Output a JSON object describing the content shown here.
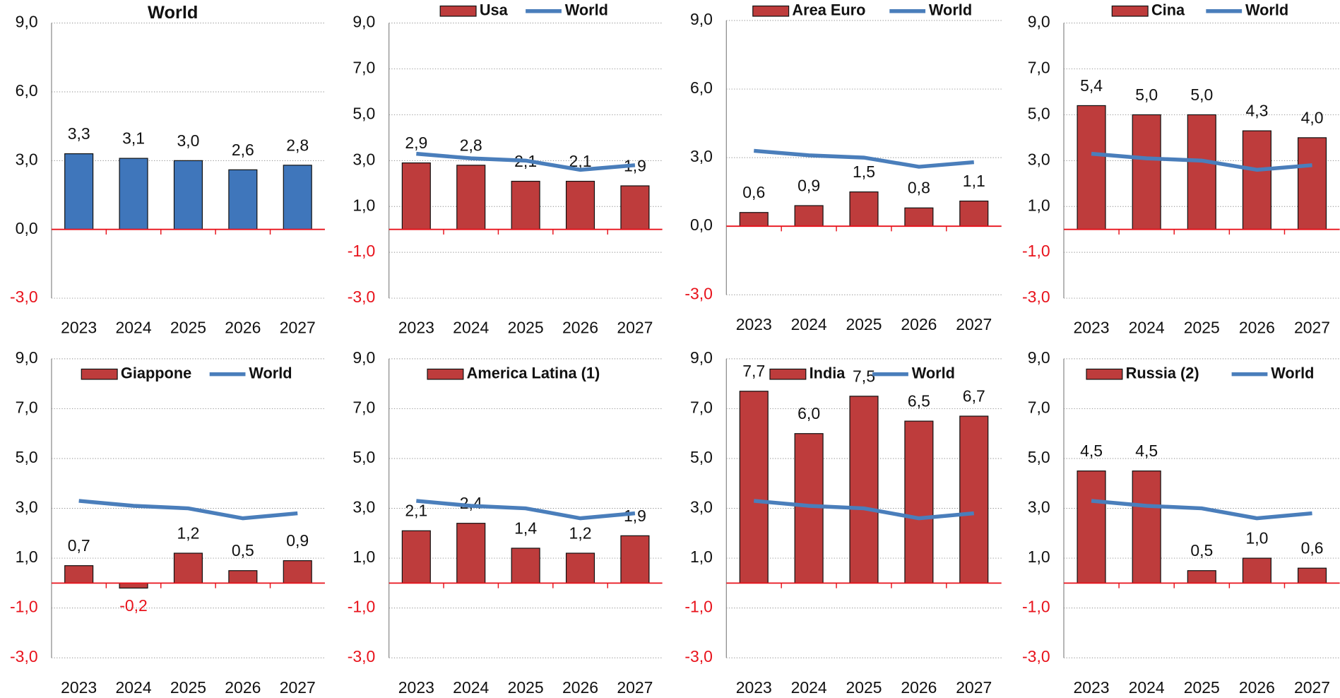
{
  "chart_data": [
    {
      "type": "bar",
      "title": "World",
      "categories": [
        "2023",
        "2024",
        "2025",
        "2026",
        "2027"
      ],
      "values": [
        3.3,
        3.1,
        3.0,
        2.6,
        2.8
      ],
      "value_labels": [
        "3,3",
        "3,1",
        "3,0",
        "2,6",
        "2,8"
      ],
      "color": "#3f76bb",
      "ylim": [
        -3,
        9
      ],
      "yticks": [
        {
          "value": -3,
          "label": "-3,0"
        },
        {
          "value": 0,
          "label": "0,0"
        },
        {
          "value": 3,
          "label": "3,0"
        },
        {
          "value": 6,
          "label": "6,0"
        },
        {
          "value": 9,
          "label": "9,0"
        }
      ],
      "grid": true
    },
    {
      "type": "bar",
      "categories": [
        "2023",
        "2024",
        "2025",
        "2026",
        "2027"
      ],
      "series": [
        {
          "name": "Usa",
          "type": "bar",
          "color": "#be3c3c",
          "values": [
            2.9,
            2.8,
            2.1,
            2.1,
            1.9
          ],
          "value_labels": [
            "2,9",
            "2,8",
            "2,1",
            "2,1",
            "1,9"
          ]
        },
        {
          "name": "World",
          "type": "line",
          "color": "#4a7ebb",
          "values": [
            3.3,
            3.1,
            3.0,
            2.6,
            2.8
          ]
        }
      ],
      "ylim": [
        -3,
        9
      ],
      "yticks": [
        {
          "value": -3,
          "label": "-3,0"
        },
        {
          "value": -1,
          "label": "-1,0"
        },
        {
          "value": 1,
          "label": "1,0"
        },
        {
          "value": 3,
          "label": "3,0"
        },
        {
          "value": 5,
          "label": "5,0"
        },
        {
          "value": 7,
          "label": "7,0"
        },
        {
          "value": 9,
          "label": "9,0"
        }
      ],
      "grid": true
    },
    {
      "type": "bar",
      "categories": [
        "2023",
        "2024",
        "2025",
        "2026",
        "2027"
      ],
      "series": [
        {
          "name": "Area Euro",
          "type": "bar",
          "color": "#be3c3c",
          "values": [
            0.6,
            0.9,
            1.5,
            0.8,
            1.1
          ],
          "value_labels": [
            "0,6",
            "0,9",
            "1,5",
            "0,8",
            "1,1"
          ]
        },
        {
          "name": "World",
          "type": "line",
          "color": "#4a7ebb",
          "values": [
            3.3,
            3.1,
            3.0,
            2.6,
            2.8
          ]
        }
      ],
      "ylim": [
        -3,
        9
      ],
      "yticks": [
        {
          "value": -3,
          "label": "-3,0"
        },
        {
          "value": 0,
          "label": "0,0"
        },
        {
          "value": 3,
          "label": "3,0"
        },
        {
          "value": 6,
          "label": "6,0"
        },
        {
          "value": 9,
          "label": "9,0"
        }
      ],
      "grid": true
    },
    {
      "type": "bar",
      "categories": [
        "2023",
        "2024",
        "2025",
        "2026",
        "2027"
      ],
      "series": [
        {
          "name": "Cina",
          "type": "bar",
          "color": "#be3c3c",
          "values": [
            5.4,
            5.0,
            5.0,
            4.3,
            4.0
          ],
          "value_labels": [
            "5,4",
            "5,0",
            "5,0",
            "4,3",
            "4,0"
          ]
        },
        {
          "name": "World",
          "type": "line",
          "color": "#4a7ebb",
          "values": [
            3.3,
            3.1,
            3.0,
            2.6,
            2.8
          ]
        }
      ],
      "ylim": [
        -3,
        9
      ],
      "yticks": [
        {
          "value": -3,
          "label": "-3,0"
        },
        {
          "value": -1,
          "label": "-1,0"
        },
        {
          "value": 1,
          "label": "1,0"
        },
        {
          "value": 3,
          "label": "3,0"
        },
        {
          "value": 5,
          "label": "5,0"
        },
        {
          "value": 7,
          "label": "7,0"
        },
        {
          "value": 9,
          "label": "9,0"
        }
      ],
      "grid": true
    },
    {
      "type": "bar",
      "categories": [
        "2023",
        "2024",
        "2025",
        "2026",
        "2027"
      ],
      "series": [
        {
          "name": "Giappone",
          "type": "bar",
          "color": "#be3c3c",
          "values": [
            0.7,
            -0.2,
            1.2,
            0.5,
            0.9
          ],
          "value_labels": [
            "0,7",
            "-0,2",
            "1,2",
            "0,5",
            "0,9"
          ]
        },
        {
          "name": "World",
          "type": "line",
          "color": "#4a7ebb",
          "values": [
            3.3,
            3.1,
            3.0,
            2.6,
            2.8
          ]
        }
      ],
      "ylim": [
        -3,
        9
      ],
      "yticks": [
        {
          "value": -3,
          "label": "-3,0"
        },
        {
          "value": -1,
          "label": "-1,0"
        },
        {
          "value": 1,
          "label": "1,0"
        },
        {
          "value": 3,
          "label": "3,0"
        },
        {
          "value": 5,
          "label": "5,0"
        },
        {
          "value": 7,
          "label": "7,0"
        },
        {
          "value": 9,
          "label": "9,0"
        }
      ],
      "grid": true
    },
    {
      "type": "bar",
      "categories": [
        "2023",
        "2024",
        "2025",
        "2026",
        "2027"
      ],
      "series": [
        {
          "name": "America Latina (1)",
          "type": "bar",
          "color": "#be3c3c",
          "values": [
            2.1,
            2.4,
            1.4,
            1.2,
            1.9
          ],
          "value_labels": [
            "2,1",
            "2,4",
            "1,4",
            "1,2",
            "1,9"
          ]
        },
        {
          "type": "line",
          "color": "#4a7ebb",
          "values": [
            3.3,
            3.1,
            3.0,
            2.6,
            2.8
          ]
        }
      ],
      "ylim": [
        -3,
        9
      ],
      "yticks": [
        {
          "value": -3,
          "label": "-3,0"
        },
        {
          "value": -1,
          "label": "-1,0"
        },
        {
          "value": 1,
          "label": "1,0"
        },
        {
          "value": 3,
          "label": "3,0"
        },
        {
          "value": 5,
          "label": "5,0"
        },
        {
          "value": 7,
          "label": "7,0"
        },
        {
          "value": 9,
          "label": "9,0"
        }
      ],
      "grid": true
    },
    {
      "type": "bar",
      "categories": [
        "2023",
        "2024",
        "2025",
        "2026",
        "2027"
      ],
      "series": [
        {
          "name": "India",
          "type": "bar",
          "color": "#be3c3c",
          "values": [
            7.7,
            6.0,
            7.5,
            6.5,
            6.7
          ],
          "value_labels": [
            "7,7",
            "6,0",
            "7,5",
            "6,5",
            "6,7"
          ]
        },
        {
          "name": "World",
          "type": "line",
          "color": "#4a7ebb",
          "values": [
            3.3,
            3.1,
            3.0,
            2.6,
            2.8
          ]
        }
      ],
      "ylim": [
        -3,
        9
      ],
      "yticks": [
        {
          "value": -3,
          "label": "-3,0"
        },
        {
          "value": -1,
          "label": "-1,0"
        },
        {
          "value": 1,
          "label": "1,0"
        },
        {
          "value": 3,
          "label": "3,0"
        },
        {
          "value": 5,
          "label": "5,0"
        },
        {
          "value": 7,
          "label": "7,0"
        },
        {
          "value": 9,
          "label": "9,0"
        }
      ],
      "grid": true
    },
    {
      "type": "bar",
      "categories": [
        "2023",
        "2024",
        "2025",
        "2026",
        "2027"
      ],
      "series": [
        {
          "name": "Russia (2)",
          "type": "bar",
          "color": "#be3c3c",
          "values": [
            4.5,
            4.5,
            0.5,
            1.0,
            0.6
          ],
          "value_labels": [
            "4,5",
            "4,5",
            "0,5",
            "1,0",
            "0,6"
          ]
        },
        {
          "name": "World",
          "type": "line",
          "color": "#4a7ebb",
          "values": [
            3.3,
            3.1,
            3.0,
            2.6,
            2.8
          ]
        }
      ],
      "ylim": [
        -3,
        9
      ],
      "yticks": [
        {
          "value": -3,
          "label": "-3,0"
        },
        {
          "value": -1,
          "label": "-1,0"
        },
        {
          "value": 1,
          "label": "1,0"
        },
        {
          "value": 3,
          "label": "3,0"
        },
        {
          "value": 5,
          "label": "5,0"
        },
        {
          "value": 7,
          "label": "7,0"
        },
        {
          "value": 9,
          "label": "9,0"
        }
      ],
      "grid": true
    }
  ]
}
